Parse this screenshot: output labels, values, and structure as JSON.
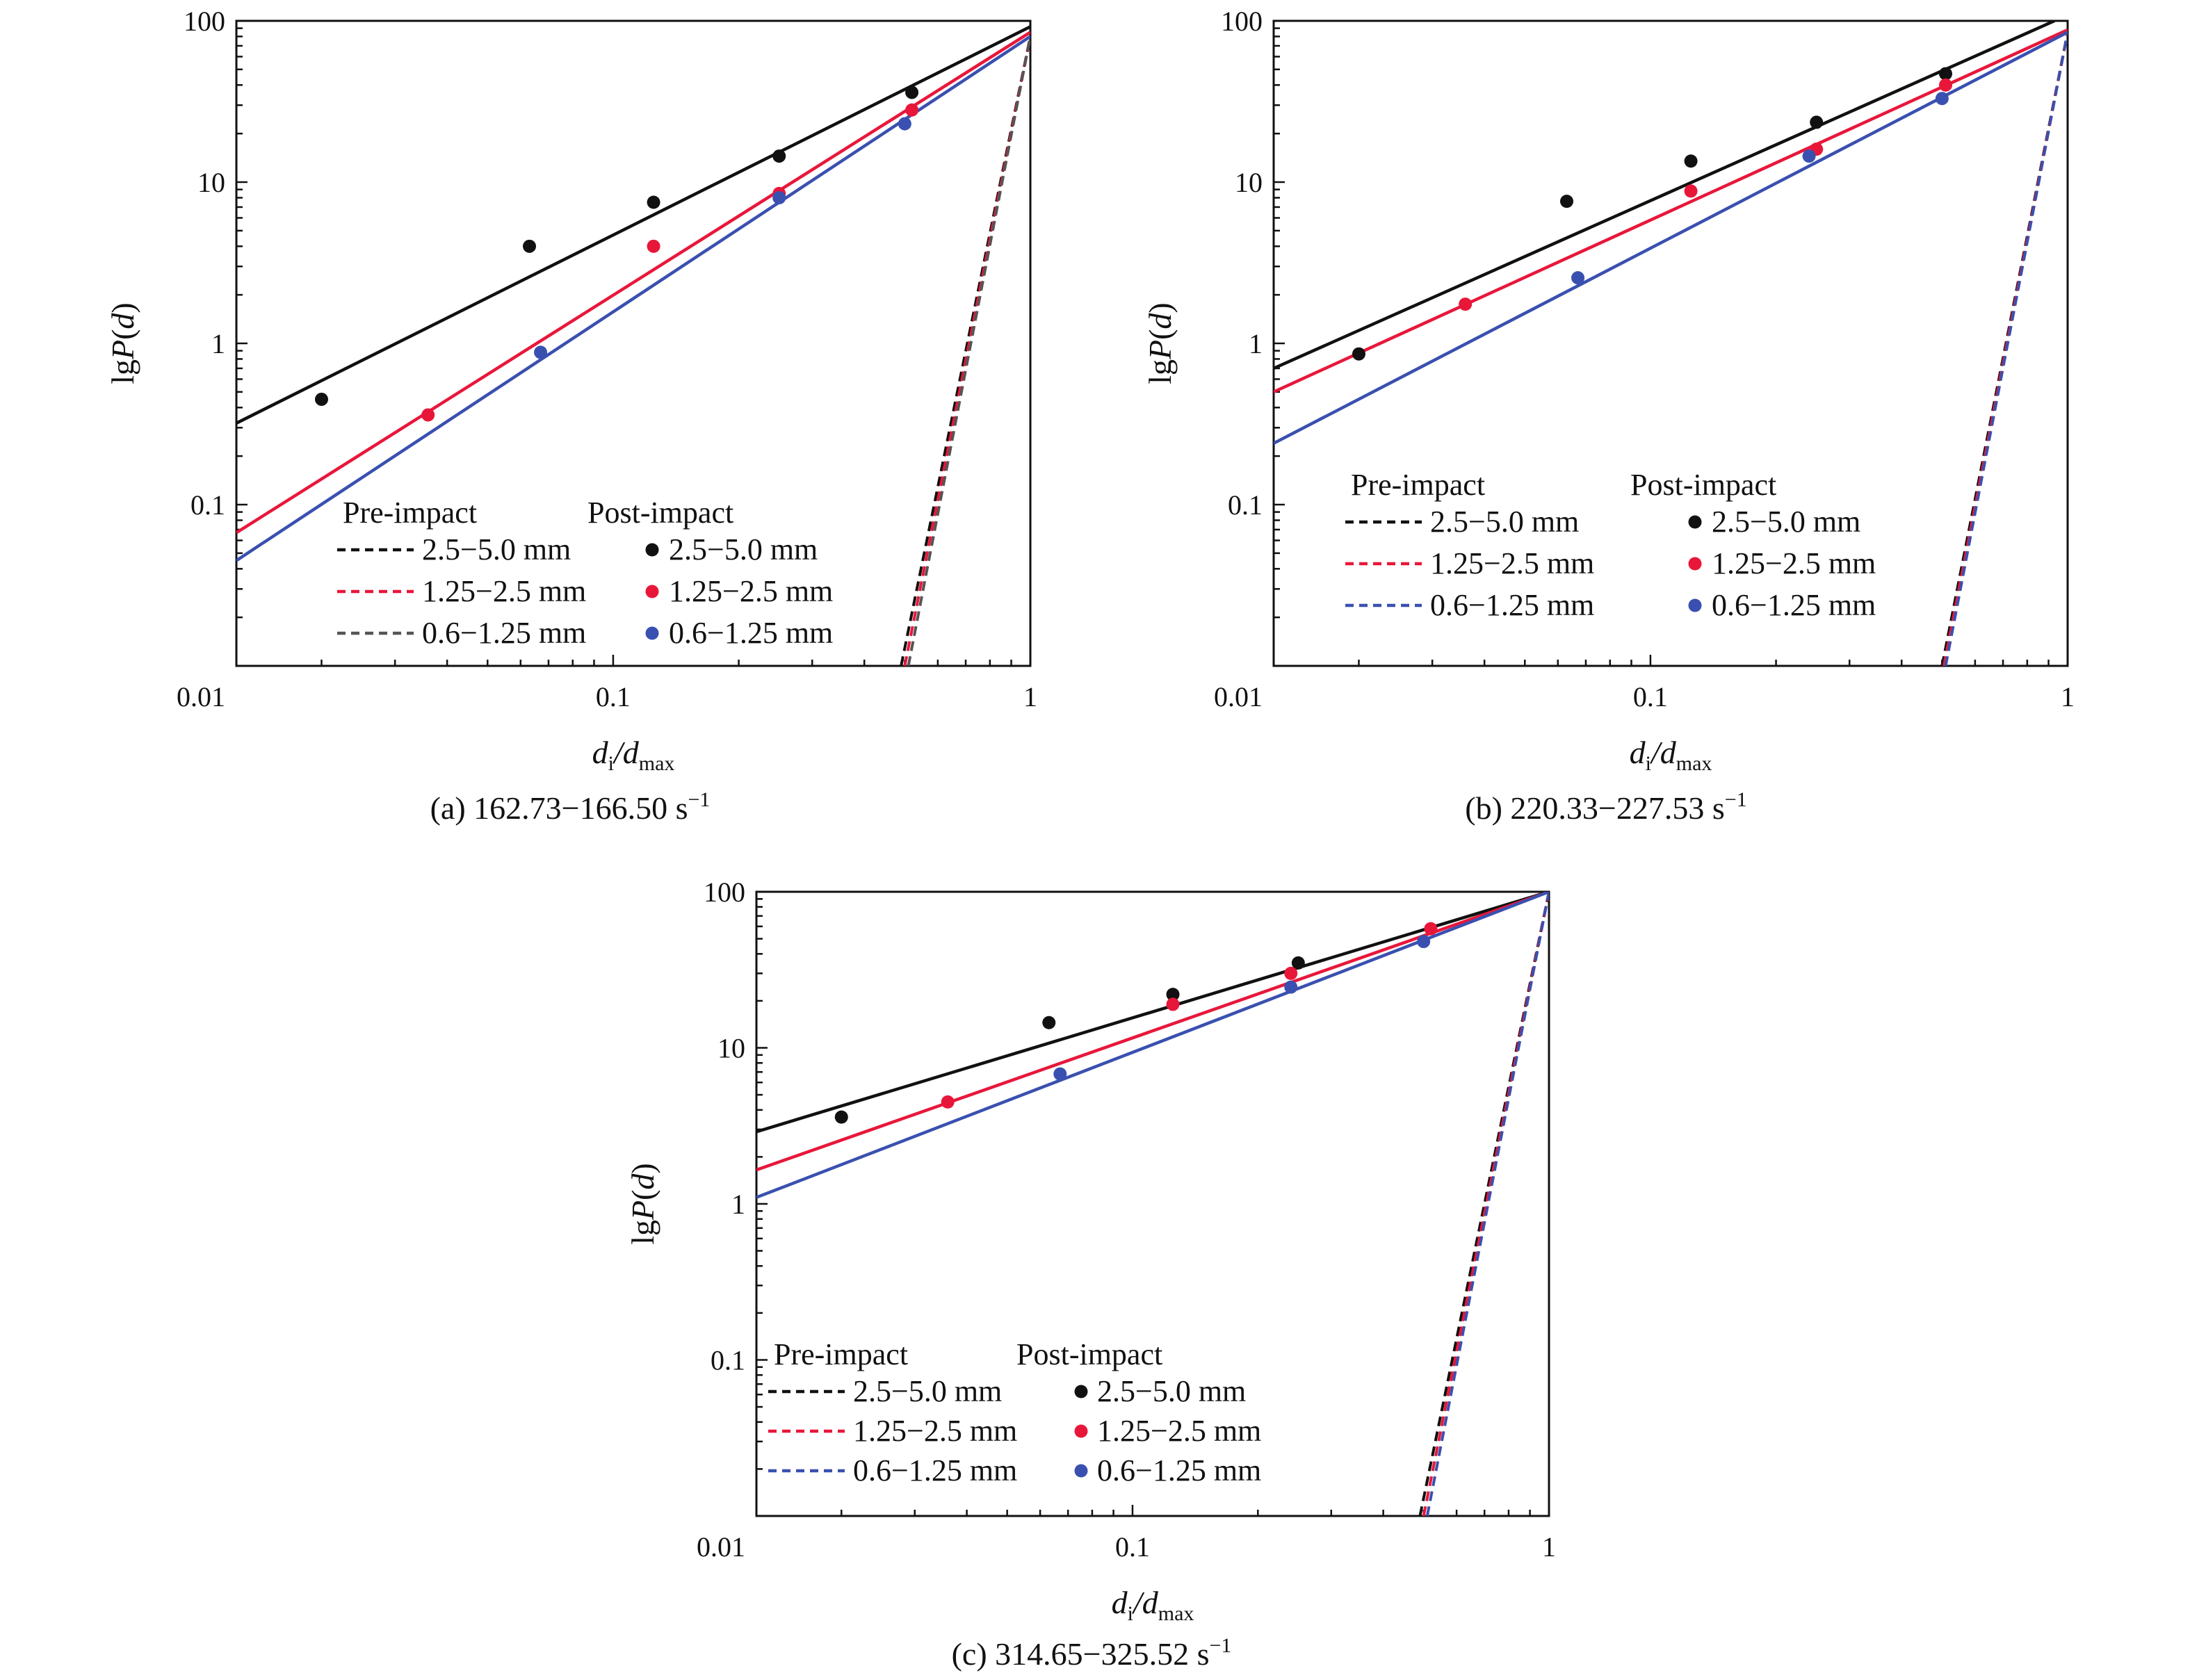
{
  "chart_data": [
    {
      "type": "scatter",
      "caption": "(a) 162.73−166.50 s",
      "caption_sup": "−1",
      "xlabel": "d",
      "xlabel_sub1": "i",
      "xlabel_mid": "/d",
      "xlabel_sub2": "max",
      "ylabel": "lgP(d)",
      "xscale": "log",
      "yscale": "log",
      "xlim": [
        0.0125,
        1
      ],
      "ylim": [
        0.01,
        100
      ],
      "xticks": [
        "0.01",
        "0.1",
        "1"
      ],
      "yticks": [
        "0.1",
        "1",
        "10",
        "100"
      ],
      "legend": {
        "pre_header": "Pre-impact",
        "post_header": "Post-impact",
        "pre_entries": [
          "2.5−5.0 mm",
          "1.25−2.5 mm",
          "0.6−1.25 mm"
        ],
        "post_entries": [
          "2.5−5.0 mm",
          "1.25−2.5 mm",
          "0.6−1.25 mm"
        ],
        "placement": "bottom-left"
      },
      "pre_impact_fits": [
        {
          "color": "#111111",
          "x": [
            0.49,
            1
          ],
          "y": [
            0.01,
            80
          ]
        },
        {
          "color": "#e8173a",
          "x": [
            0.5,
            1
          ],
          "y": [
            0.01,
            80
          ]
        },
        {
          "color": "#555555",
          "x": [
            0.51,
            1
          ],
          "y": [
            0.01,
            80
          ]
        }
      ],
      "post_impact_fits": [
        {
          "color": "#111111",
          "x": [
            0.0125,
            1
          ],
          "y": [
            0.32,
            92
          ]
        },
        {
          "color": "#e8173a",
          "x": [
            0.0125,
            1
          ],
          "y": [
            0.067,
            85
          ]
        },
        {
          "color": "#3a50b0",
          "x": [
            0.0125,
            1
          ],
          "y": [
            0.045,
            80
          ]
        }
      ],
      "post_impact_points": [
        {
          "color": "#111111",
          "x": [
            0.02,
            0.063,
            0.125,
            0.25,
            0.52
          ],
          "y": [
            0.45,
            4.0,
            7.5,
            14.5,
            36
          ]
        },
        {
          "color": "#e8173a",
          "x": [
            0.036,
            0.125,
            0.25,
            0.52
          ],
          "y": [
            0.36,
            4.0,
            8.5,
            28
          ]
        },
        {
          "color": "#3a50b0",
          "x": [
            0.067,
            0.25,
            0.5
          ],
          "y": [
            0.88,
            8.0,
            23
          ]
        }
      ]
    },
    {
      "type": "scatter",
      "caption": "(b) 220.33−227.53 s",
      "caption_sup": "−1",
      "xlabel": "d",
      "xlabel_sub1": "i",
      "xlabel_mid": "/d",
      "xlabel_sub2": "max",
      "ylabel": "lgP(d)",
      "xscale": "log",
      "yscale": "log",
      "xlim": [
        0.0125,
        1
      ],
      "ylim": [
        0.01,
        100
      ],
      "xticks": [
        "0.01",
        "0.1",
        "1"
      ],
      "yticks": [
        "0.1",
        "1",
        "10",
        "100"
      ],
      "legend": {
        "pre_header": "Pre-impact",
        "post_header": "Post-impact",
        "pre_entries": [
          "2.5−5.0 mm",
          "1.25−2.5 mm",
          "0.6−1.25 mm"
        ],
        "post_entries": [
          "2.5−5.0 mm",
          "1.25−2.5 mm",
          "0.6−1.25 mm"
        ],
        "placement": "bottom-left"
      },
      "pre_impact_fits": [
        {
          "color": "#111111",
          "x": [
            0.5,
            1
          ],
          "y": [
            0.01,
            85
          ]
        },
        {
          "color": "#e8173a",
          "x": [
            0.505,
            1
          ],
          "y": [
            0.01,
            85
          ]
        },
        {
          "color": "#3a50b0",
          "x": [
            0.51,
            1
          ],
          "y": [
            0.01,
            85
          ]
        }
      ],
      "post_impact_fits": [
        {
          "color": "#111111",
          "x": [
            0.0125,
            0.93
          ],
          "y": [
            0.7,
            100
          ]
        },
        {
          "color": "#e8173a",
          "x": [
            0.0125,
            1
          ],
          "y": [
            0.5,
            88
          ]
        },
        {
          "color": "#3a50b0",
          "x": [
            0.0125,
            1
          ],
          "y": [
            0.24,
            85
          ]
        }
      ],
      "post_impact_points": [
        {
          "color": "#111111",
          "x": [
            0.02,
            0.063,
            0.125,
            0.25,
            0.51
          ],
          "y": [
            0.86,
            7.6,
            13.5,
            23.5,
            47
          ]
        },
        {
          "color": "#e8173a",
          "x": [
            0.036,
            0.125,
            0.25,
            0.51
          ],
          "y": [
            1.75,
            8.8,
            16,
            40
          ]
        },
        {
          "color": "#3a50b0",
          "x": [
            0.067,
            0.24,
            0.5
          ],
          "y": [
            2.55,
            14.5,
            33
          ]
        }
      ]
    },
    {
      "type": "scatter",
      "caption": "(c) 314.65−325.52 s",
      "caption_sup": "−1",
      "xlabel": "d",
      "xlabel_sub1": "i",
      "xlabel_mid": "/d",
      "xlabel_sub2": "max",
      "ylabel": "lgP(d)",
      "xscale": "log",
      "yscale": "log",
      "xlim": [
        0.0125,
        1
      ],
      "ylim": [
        0.01,
        100
      ],
      "xticks": [
        "0.01",
        "0.1",
        "1"
      ],
      "yticks": [
        "0.1",
        "1",
        "10",
        "100"
      ],
      "legend": {
        "pre_header": "Pre-impact",
        "post_header": "Post-impact",
        "pre_entries": [
          "2.5−5.0 mm",
          "1.25−2.5 mm",
          "0.6−1.25 mm"
        ],
        "post_entries": [
          "2.5−5.0 mm",
          "1.25−2.5 mm",
          "0.6−1.25 mm"
        ],
        "placement": "bottom-left"
      },
      "pre_impact_fits": [
        {
          "color": "#111111",
          "x": [
            0.49,
            1
          ],
          "y": [
            0.01,
            100
          ]
        },
        {
          "color": "#e8173a",
          "x": [
            0.5,
            1
          ],
          "y": [
            0.01,
            100
          ]
        },
        {
          "color": "#3a50b0",
          "x": [
            0.51,
            1
          ],
          "y": [
            0.01,
            100
          ]
        }
      ],
      "post_impact_fits": [
        {
          "color": "#111111",
          "x": [
            0.0125,
            1
          ],
          "y": [
            2.9,
            100
          ]
        },
        {
          "color": "#e8173a",
          "x": [
            0.0125,
            1
          ],
          "y": [
            1.65,
            100
          ]
        },
        {
          "color": "#3a50b0",
          "x": [
            0.0125,
            1
          ],
          "y": [
            1.1,
            100
          ]
        }
      ],
      "post_impact_points": [
        {
          "color": "#111111",
          "x": [
            0.02,
            0.063,
            0.125,
            0.25
          ],
          "y": [
            3.6,
            14.5,
            22,
            35
          ]
        },
        {
          "color": "#e8173a",
          "x": [
            0.036,
            0.125,
            0.24,
            0.52
          ],
          "y": [
            4.5,
            19,
            30,
            58
          ]
        },
        {
          "color": "#3a50b0",
          "x": [
            0.067,
            0.24,
            0.5
          ],
          "y": [
            6.8,
            24.5,
            48
          ]
        }
      ]
    }
  ]
}
